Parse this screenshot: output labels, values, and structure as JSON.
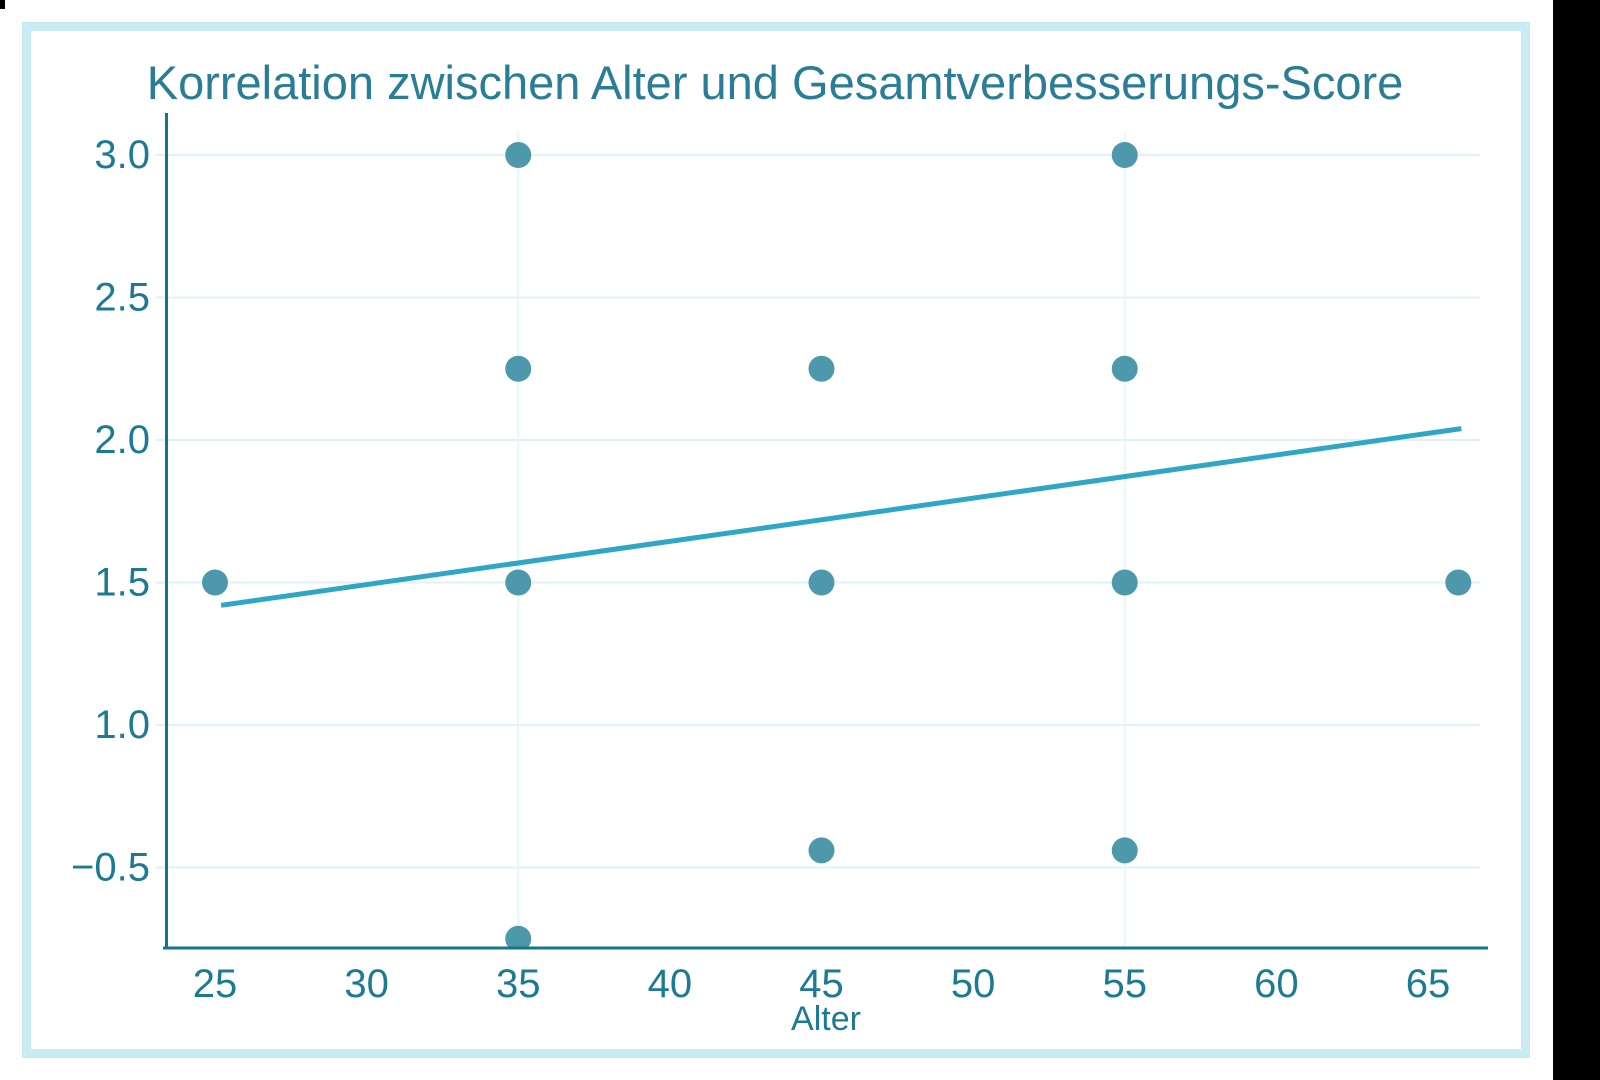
{
  "screen": {
    "background": "#ffffff",
    "edge_band_color": "#000000",
    "corner_mark_color": "#000000",
    "card_border_color": "#c9ebf4"
  },
  "chart_data": {
    "type": "scatter",
    "title": "Korrelation zwischen Alter und Gesamtverbesserungs-Score",
    "xlabel": "Alter",
    "ylabel": "",
    "x_ticks": [
      25,
      30,
      35,
      40,
      45,
      50,
      55,
      60,
      65
    ],
    "y_tick_labels": [
      "3.0",
      "2.5",
      "2.0",
      "1.5",
      "1.0",
      "−0.5"
    ],
    "xlim": [
      23.4,
      67
    ],
    "ylim": [
      0.22,
      3.14
    ],
    "grid": true,
    "legend_position": "none",
    "vertical_gridlines_at_x": [
      35,
      55
    ],
    "points": [
      {
        "x": 25,
        "y": 1.5
      },
      {
        "x": 35,
        "y": 3.0
      },
      {
        "x": 35,
        "y": 2.25
      },
      {
        "x": 35,
        "y": 1.5
      },
      {
        "x": 35,
        "y": 0.25
      },
      {
        "x": 45,
        "y": 2.25
      },
      {
        "x": 45,
        "y": 1.5
      },
      {
        "x": 45,
        "y": 0.56
      },
      {
        "x": 55,
        "y": 3.0
      },
      {
        "x": 55,
        "y": 2.25
      },
      {
        "x": 55,
        "y": 1.5
      },
      {
        "x": 55,
        "y": 0.56
      },
      {
        "x": 66,
        "y": 1.5
      }
    ],
    "trendline": {
      "x1": 25.2,
      "y1": 1.42,
      "x2": 66.1,
      "y2": 2.04
    },
    "colors": {
      "point": "#4d99ab",
      "trend_line": "#2fa7c3",
      "axis": "#16758e",
      "h_gridline": "#dff2f9",
      "v_gridline": "#e6f6fb",
      "tick_text": "#1d7a94",
      "title_text": "#2a7d97"
    }
  }
}
